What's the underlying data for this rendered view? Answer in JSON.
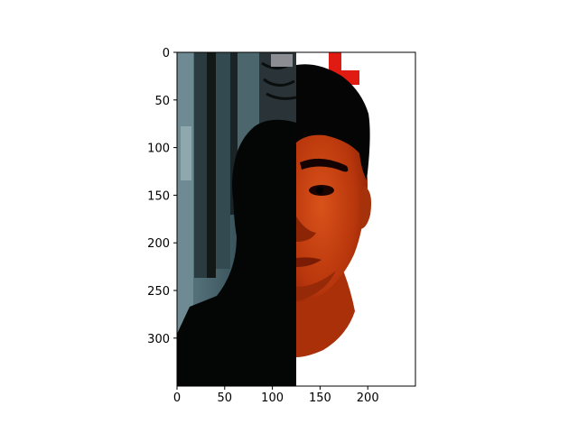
{
  "figure": {
    "description_free_note": "",
    "x_ticks": [
      "0",
      "50",
      "100",
      "150",
      "200"
    ],
    "y_ticks": [
      "0",
      "50",
      "100",
      "150",
      "200",
      "250",
      "300"
    ],
    "x_range": [
      0,
      250
    ],
    "y_range": [
      0,
      350
    ],
    "colors": {
      "background": "#ffffff",
      "axes_frame": "#000000",
      "left_half_bg": "#3f5b63",
      "left_half_dark": "#050807",
      "face_orange": "#c9400f",
      "hair_black": "#050505",
      "red_sign": "#e01b12"
    }
  }
}
